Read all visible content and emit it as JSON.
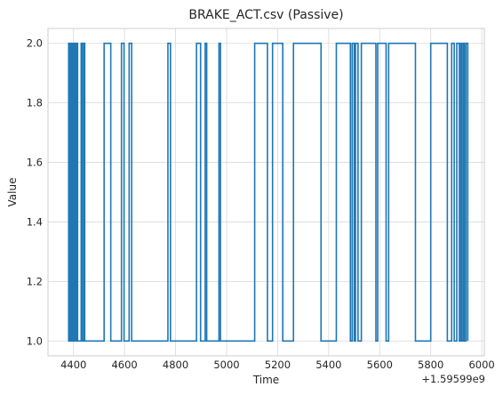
{
  "chart_data": {
    "type": "line",
    "title": "BRAKE_ACT.csv (Passive)",
    "xlabel": "Time",
    "ylabel": "Value",
    "x_offset_label": "+1.59599e9",
    "xlim": [
      4300,
      6010
    ],
    "ylim": [
      0.95,
      2.05
    ],
    "x_ticks": [
      4400,
      4600,
      4800,
      5000,
      5200,
      5400,
      5600,
      5800,
      6000
    ],
    "x_tick_labels": [
      "4400",
      "4600",
      "4800",
      "5000",
      "5200",
      "5400",
      "5600",
      "5800",
      "6000"
    ],
    "y_ticks": [
      1.0,
      1.2,
      1.4,
      1.6,
      1.8,
      2.0
    ],
    "y_tick_labels": [
      "1.0",
      "1.2",
      "1.4",
      "1.6",
      "1.8",
      "2.0"
    ],
    "grid": true,
    "style": "step",
    "colors": {
      "line": "#1f77b4",
      "grid": "#d9d9d9",
      "spine": "#cccccc"
    },
    "series": [
      {
        "x": [
          4378,
          4381,
          4385,
          4388,
          4392,
          4394,
          4398,
          4400,
          4404,
          4408,
          4412,
          4416,
          4430,
          4434,
          4440,
          4444,
          4520,
          4546,
          4588,
          4598,
          4618,
          4628,
          4668,
          4770,
          4780,
          4882,
          4898,
          4916,
          4922,
          4970,
          4976,
          5110,
          5160,
          5180,
          5220,
          5262,
          5370,
          5430,
          5485,
          5492,
          5500,
          5505,
          5515,
          5528,
          5585,
          5592,
          5625,
          5635,
          5740,
          5800,
          5865,
          5882,
          5892,
          5902,
          5912,
          5918,
          5922,
          5928,
          5932,
          5938,
          5945
        ],
        "y": [
          2.0,
          1.0,
          2.0,
          1.0,
          2.0,
          1.0,
          2.0,
          1.0,
          2.0,
          1.0,
          2.0,
          1.0,
          2.0,
          1.0,
          2.0,
          1.0,
          2.0,
          1.0,
          2.0,
          1.0,
          2.0,
          1.0,
          1.0,
          2.0,
          1.0,
          2.0,
          1.0,
          2.0,
          1.0,
          2.0,
          1.0,
          2.0,
          1.0,
          2.0,
          1.0,
          2.0,
          1.0,
          2.0,
          1.0,
          2.0,
          1.0,
          2.0,
          1.0,
          2.0,
          1.0,
          2.0,
          1.0,
          2.0,
          1.0,
          2.0,
          1.0,
          2.0,
          1.0,
          2.0,
          1.0,
          2.0,
          1.0,
          2.0,
          1.0,
          2.0,
          1.0
        ]
      }
    ]
  }
}
